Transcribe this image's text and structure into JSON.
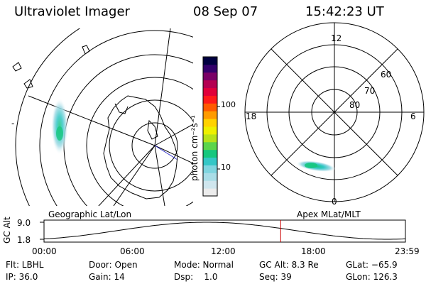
{
  "header": {
    "instrument": "Ultraviolet Imager",
    "date": "08 Sep 07",
    "time": "15:42:23 UT"
  },
  "geo_panel": {
    "label": "Geographic Lat/Lon",
    "tick": "-"
  },
  "colorbar": {
    "unit_label": "photon cm⁻²s⁻¹",
    "ticks": [
      "100",
      "10"
    ],
    "scale": "log",
    "colors": [
      "#ececec",
      "#cfe6ee",
      "#a9dde7",
      "#7fd5df",
      "#34c7c6",
      "#16c77e",
      "#5bd54b",
      "#b7e21a",
      "#eef000",
      "#ffd200",
      "#ff9b00",
      "#ff5a00",
      "#ff1a1a",
      "#e0003a",
      "#b40051",
      "#7a0066",
      "#33006b",
      "#000040"
    ]
  },
  "polar_panel": {
    "label": "Apex MLat/MLT",
    "mlt_labels": {
      "top": "12",
      "bottom": "0",
      "left": "18",
      "right": "6"
    },
    "lat_labels": [
      "60",
      "70",
      "80"
    ]
  },
  "timeline": {
    "ylabel": "GC Alt",
    "yticks": [
      "9.0",
      "1.8"
    ],
    "xticks": [
      "00:00",
      "06:00",
      "12:00",
      "18:00",
      "23:59"
    ],
    "marker_time": "15:42:23"
  },
  "status": {
    "row1": {
      "filter": "Flt: LBHL",
      "door": "Door: Open",
      "mode": "Mode: Normal",
      "gc_alt": "GC Alt: 8.3 Re",
      "glat": "GLat: −65.9"
    },
    "row2": {
      "ip": "IP: 36.0",
      "gain": "Gain: 14",
      "dsp": "Dsp:    1.0",
      "seq": "Seq: 39",
      "glon": "GLon: 126.3"
    }
  },
  "colors": {
    "foreground": "#000000",
    "marker": "#cc0000",
    "aurora_core": "#19c77a",
    "aurora_halo": "#a9dde7"
  }
}
